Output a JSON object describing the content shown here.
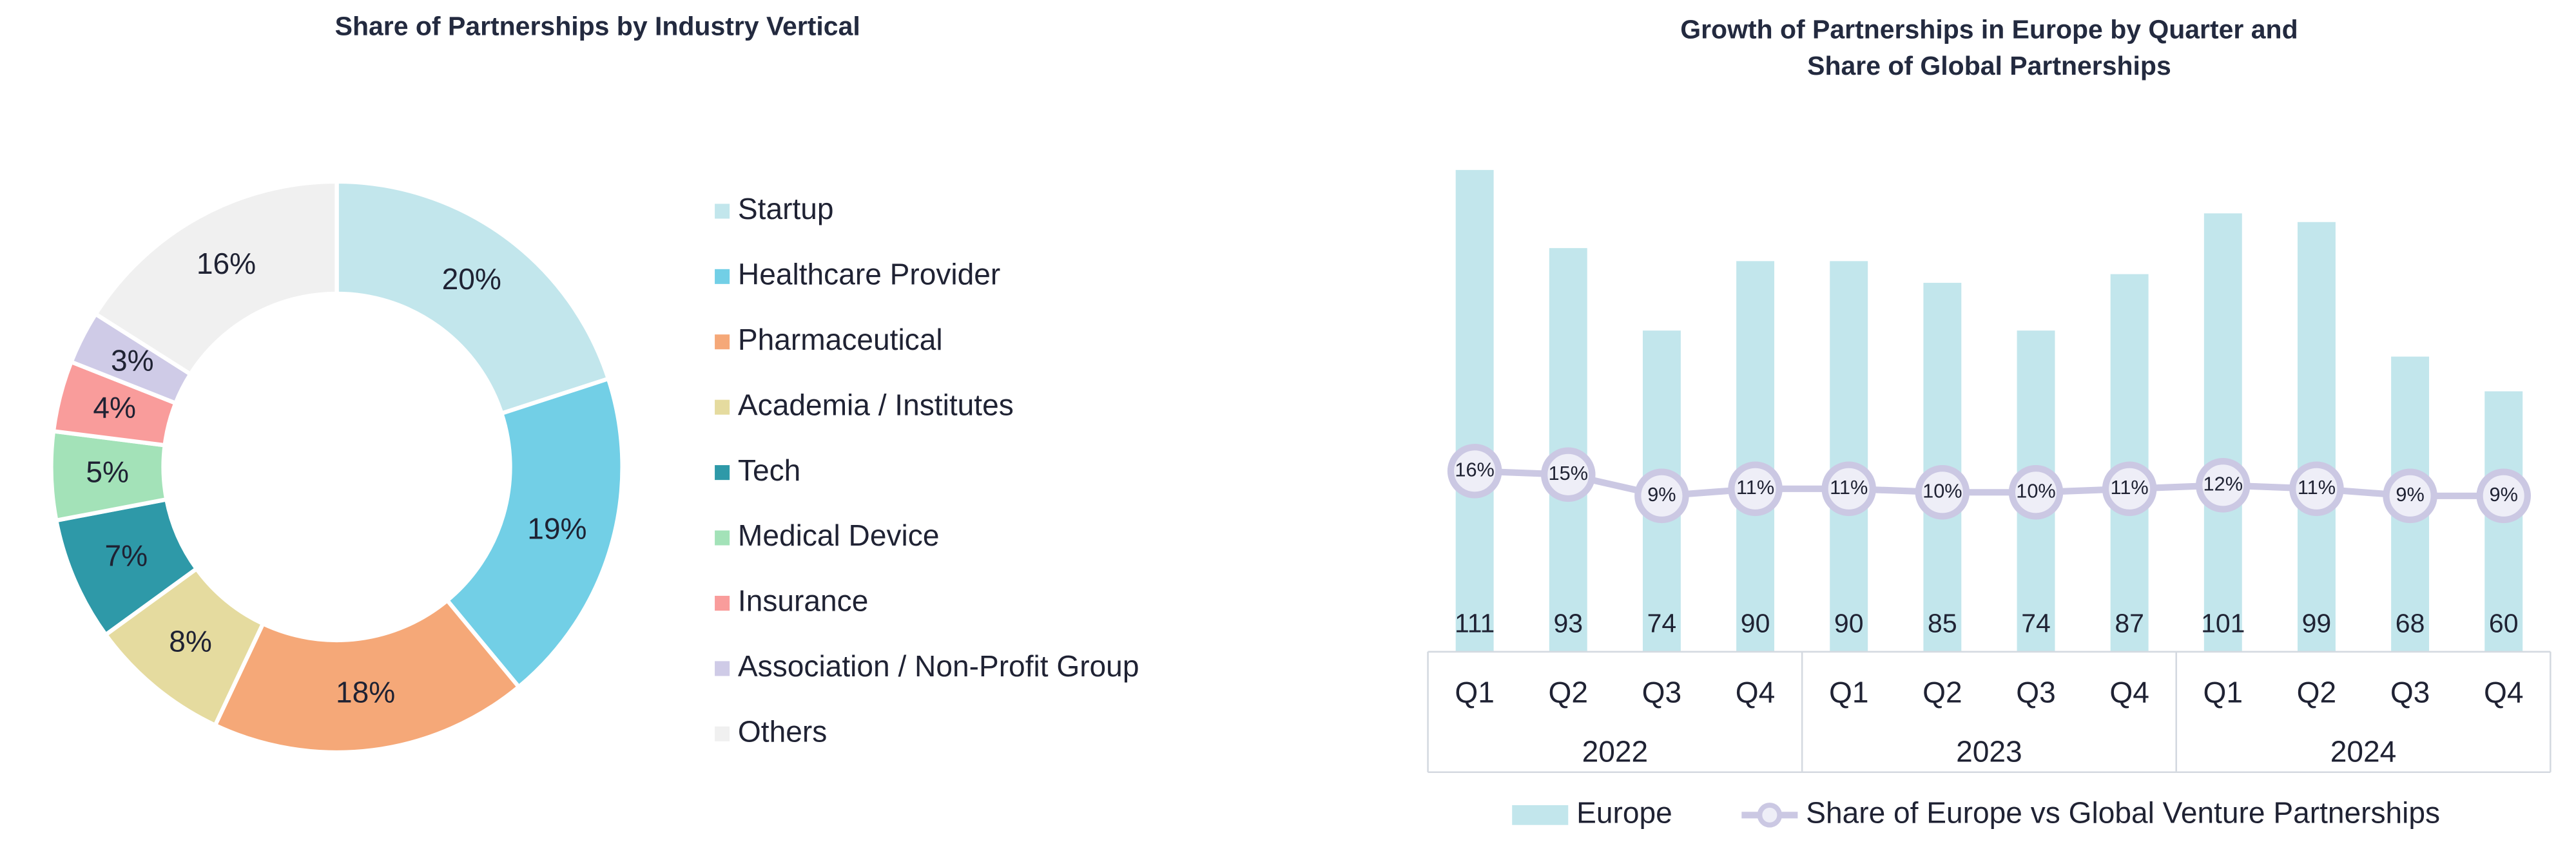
{
  "chart_data": [
    {
      "type": "pie",
      "title": "Share of Partnerships by Industry Vertical",
      "categories": [
        "Startup",
        "Healthcare Provider",
        "Pharmaceutical",
        "Academia / Institutes",
        "Tech",
        "Medical Device",
        "Insurance",
        "Association / Non-Profit Group",
        "Others"
      ],
      "values": [
        20,
        19,
        18,
        8,
        7,
        5,
        4,
        3,
        16
      ],
      "value_labels": [
        "20%",
        "19%",
        "18%",
        "8%",
        "7%",
        "5%",
        "4%",
        "3%",
        "16%"
      ],
      "colors": [
        "#c2e6ec",
        "#72cfe6",
        "#f5a878",
        "#e5db9f",
        "#2e99a8",
        "#a3e2b8",
        "#f99c9b",
        "#cfcbe7",
        "#f0f0f0"
      ],
      "legend": "right"
    },
    {
      "type": "bar-line",
      "title": [
        "Growth of Partnerships in Europe by Quarter and",
        "Share of Global Partnerships"
      ],
      "categories": [
        "Q1",
        "Q2",
        "Q3",
        "Q4",
        "Q1",
        "Q2",
        "Q3",
        "Q4",
        "Q1",
        "Q2",
        "Q3",
        "Q4"
      ],
      "groups": [
        "2022",
        "2023",
        "2024"
      ],
      "series": [
        {
          "name": "Europe",
          "type": "bar",
          "color": "#c2e6ec",
          "values": [
            111,
            93,
            74,
            90,
            90,
            85,
            74,
            87,
            101,
            99,
            68,
            60
          ]
        },
        {
          "name": "Share of Europe vs Global Venture Partnerships",
          "type": "line",
          "axis": "y2",
          "color": "#cbc8e3",
          "values": [
            16,
            15,
            9,
            11,
            11,
            10,
            10,
            11,
            12,
            11,
            9,
            9
          ],
          "value_labels": [
            "16%",
            "15%",
            "9%",
            "11%",
            "11%",
            "10%",
            "10%",
            "11%",
            "12%",
            "11%",
            "9%",
            "9%"
          ]
        }
      ],
      "ylim": [
        0,
        111
      ],
      "y2lim": [
        -35,
        101
      ],
      "legend": "bottom"
    }
  ]
}
